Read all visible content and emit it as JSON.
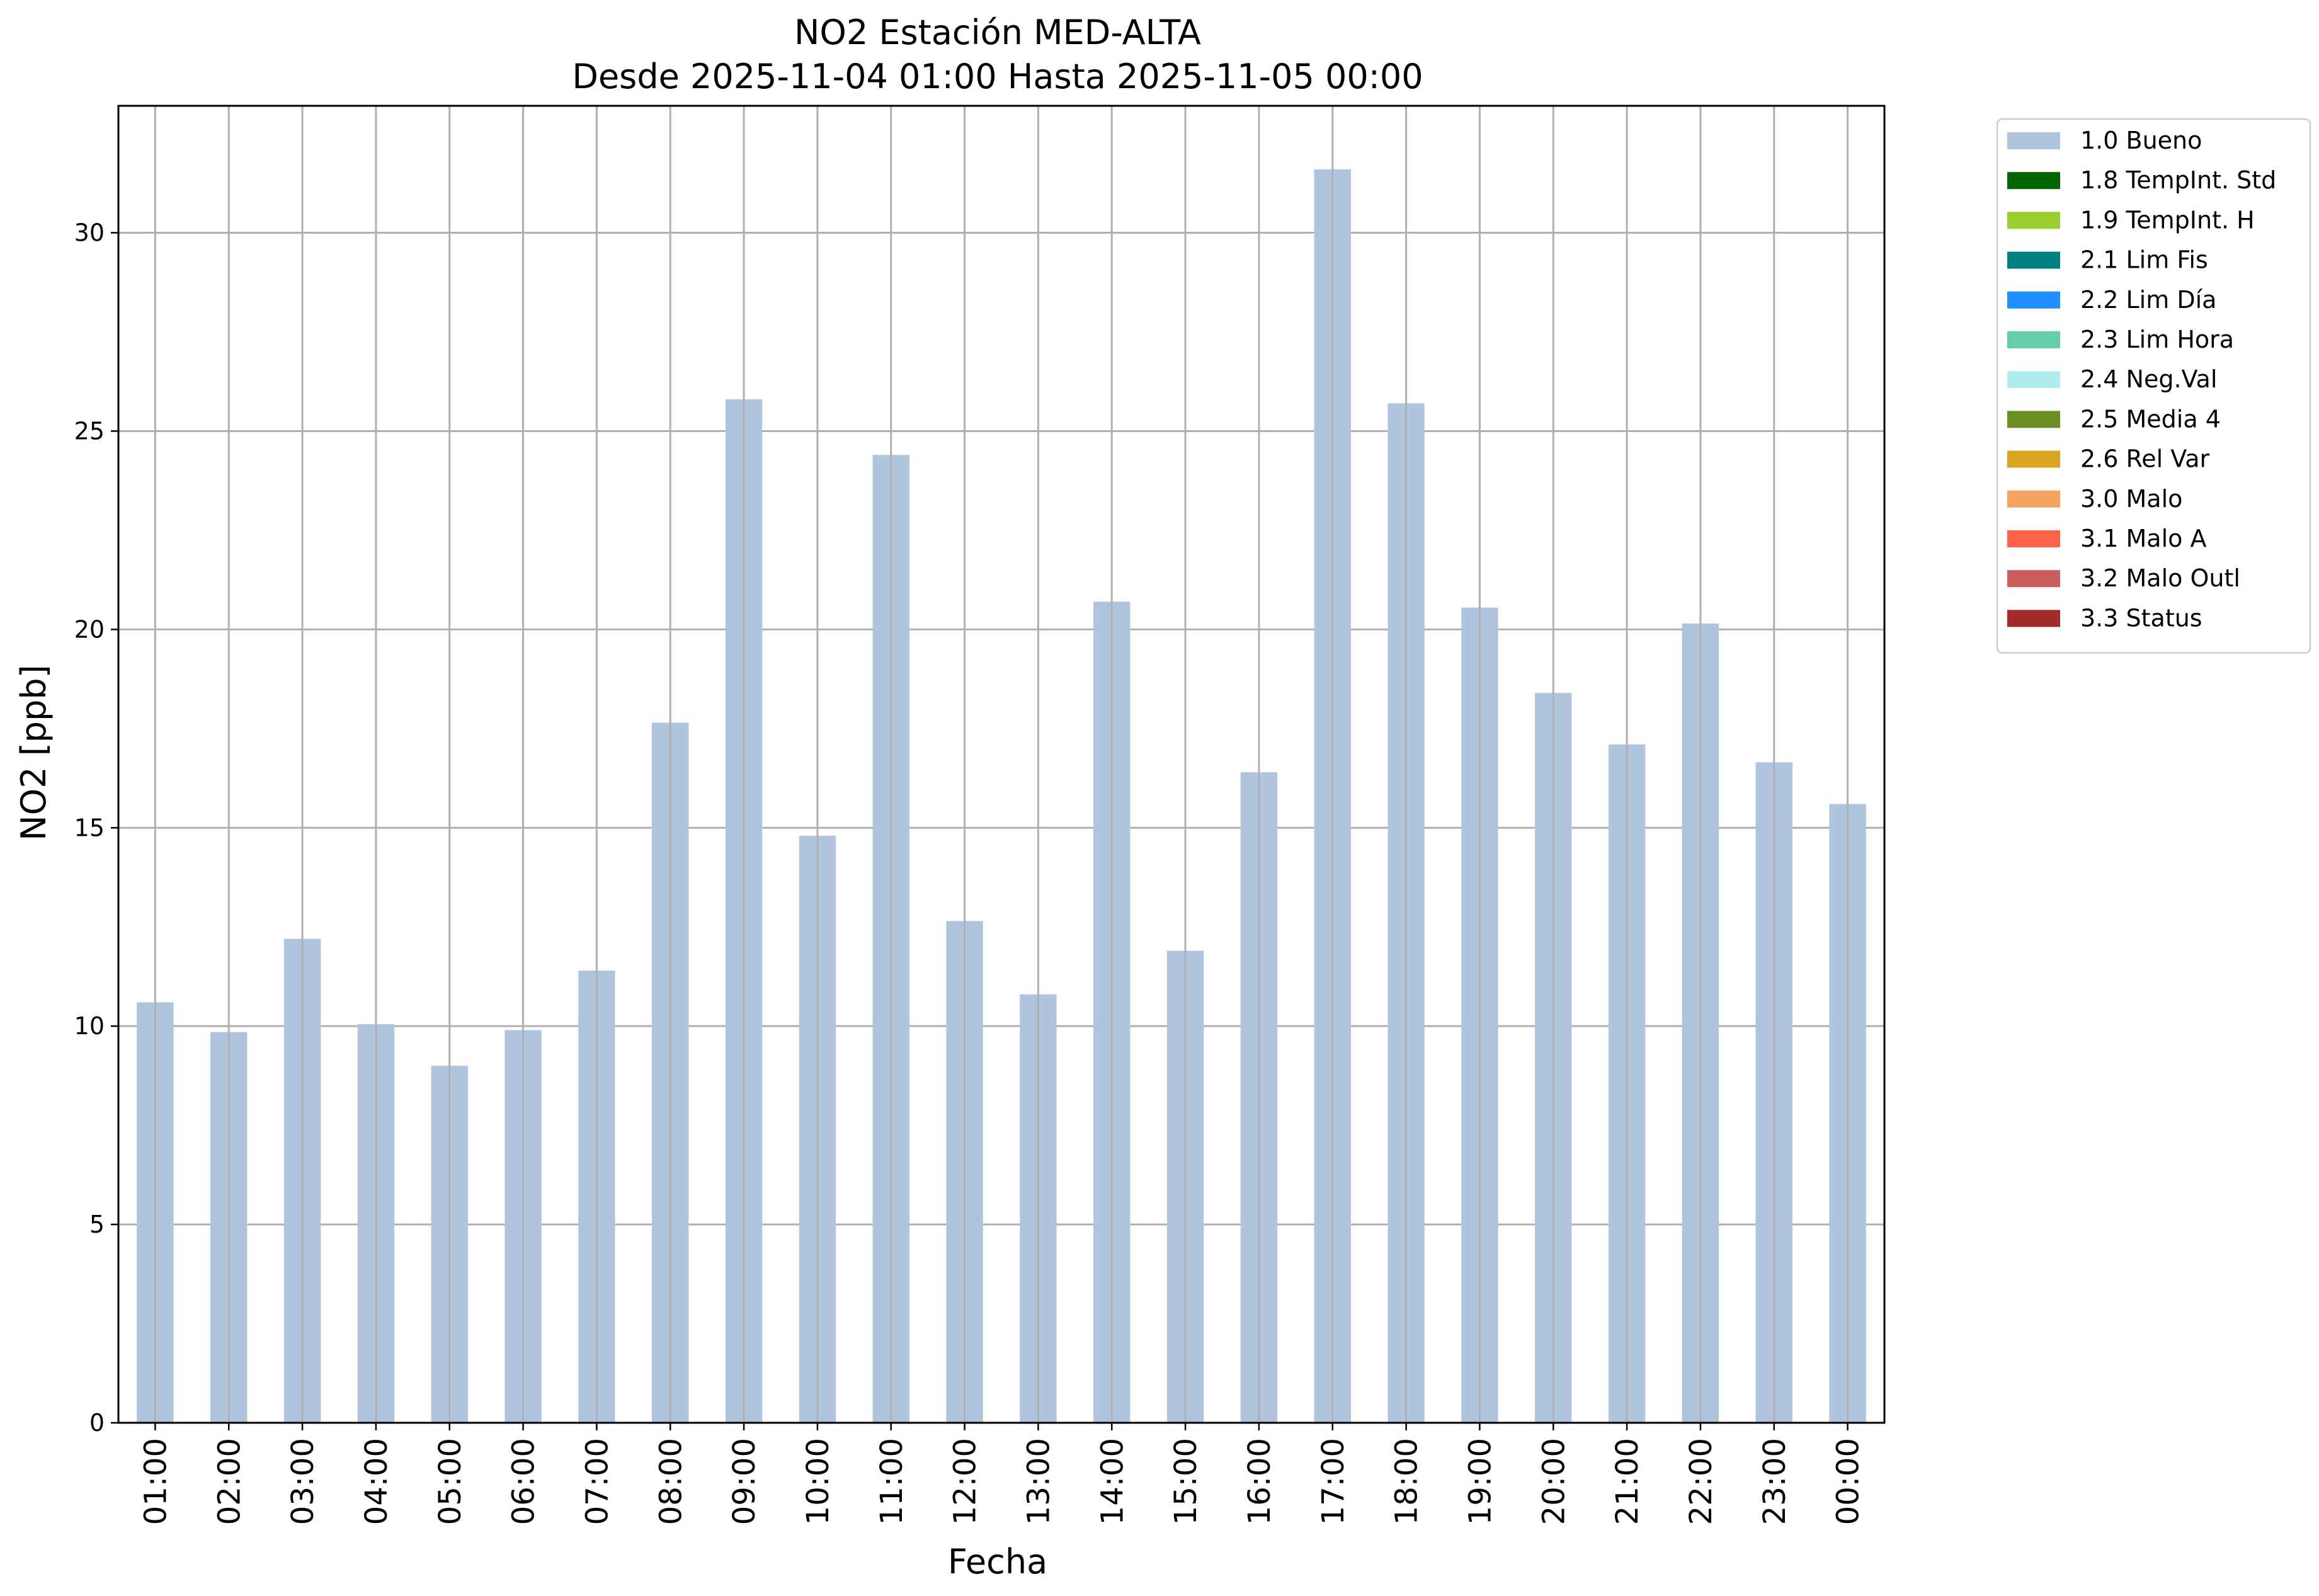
{
  "chart_data": {
    "type": "bar",
    "title": "NO2 Estación MED-ALTA",
    "subtitle": "Desde 2025-11-04 01:00 Hasta 2025-11-05 00:00",
    "xlabel": "Fecha",
    "ylabel": "NO2 [ppb]",
    "ylim": [
      0,
      33.2
    ],
    "yticks": [
      0,
      5,
      10,
      15,
      20,
      25,
      30
    ],
    "grid": true,
    "legend_position": "outside-top-right",
    "categories": [
      "01:00",
      "02:00",
      "03:00",
      "04:00",
      "05:00",
      "06:00",
      "07:00",
      "08:00",
      "09:00",
      "10:00",
      "11:00",
      "12:00",
      "13:00",
      "14:00",
      "15:00",
      "16:00",
      "17:00",
      "18:00",
      "19:00",
      "20:00",
      "21:00",
      "22:00",
      "23:00",
      "00:00"
    ],
    "series": [
      {
        "name": "1.0 Bueno",
        "color": "#b0c4de",
        "values": [
          10.6,
          9.85,
          12.2,
          10.05,
          9.0,
          9.9,
          11.4,
          17.65,
          25.8,
          14.8,
          24.4,
          12.65,
          10.8,
          20.7,
          11.9,
          16.4,
          31.6,
          25.7,
          20.55,
          18.4,
          17.1,
          20.15,
          16.65,
          15.6
        ]
      }
    ],
    "legend": [
      {
        "label": "1.0 Bueno",
        "color": "#b0c4de"
      },
      {
        "label": "1.8 TempInt. Std",
        "color": "#006400"
      },
      {
        "label": "1.9 TempInt. H",
        "color": "#9acd32"
      },
      {
        "label": "2.1 Lim Fis",
        "color": "#008080"
      },
      {
        "label": "2.2 Lim Día",
        "color": "#1e90ff"
      },
      {
        "label": "2.3 Lim Hora",
        "color": "#66cdaa"
      },
      {
        "label": "2.4 Neg.Val",
        "color": "#afeeee"
      },
      {
        "label": "2.5 Media 4",
        "color": "#6b8e23"
      },
      {
        "label": "2.6 Rel Var",
        "color": "#daa520"
      },
      {
        "label": "3.0 Malo",
        "color": "#f4a460"
      },
      {
        "label": "3.1 Malo A",
        "color": "#ff6347"
      },
      {
        "label": "3.2 Malo Outl",
        "color": "#cd5c5c"
      },
      {
        "label": "3.3 Status",
        "color": "#a52a2a"
      }
    ]
  }
}
